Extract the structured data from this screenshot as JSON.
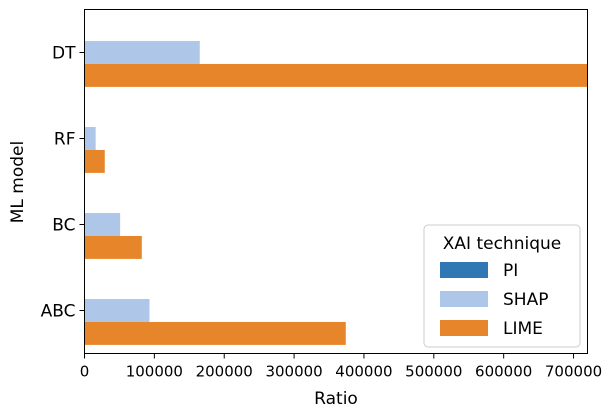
{
  "chart_data": {
    "type": "bar",
    "orientation": "horizontal",
    "categories": [
      "DT",
      "RF",
      "BC",
      "ABC"
    ],
    "series": [
      {
        "name": "PI",
        "color": "#2f78b4",
        "values": [
          0,
          0,
          0,
          0
        ]
      },
      {
        "name": "SHAP",
        "color": "#aec7e8",
        "values": [
          165000,
          16000,
          51000,
          93000
        ]
      },
      {
        "name": "LIME",
        "color": "#e6852a",
        "values": [
          720000,
          29000,
          82000,
          374000
        ]
      }
    ],
    "xlabel": "Ratio",
    "ylabel": "ML model",
    "xlim": [
      0,
      720000
    ],
    "xticks": [
      0,
      100000,
      200000,
      300000,
      400000,
      500000,
      600000,
      700000
    ],
    "xtick_labels": [
      "0",
      "100000",
      "200000",
      "300000",
      "400000",
      "500000",
      "600000",
      "700000"
    ],
    "legend": {
      "title": "XAI technique",
      "position": "lower-right",
      "items": [
        "PI",
        "SHAP",
        "LIME"
      ]
    },
    "grid": false
  }
}
